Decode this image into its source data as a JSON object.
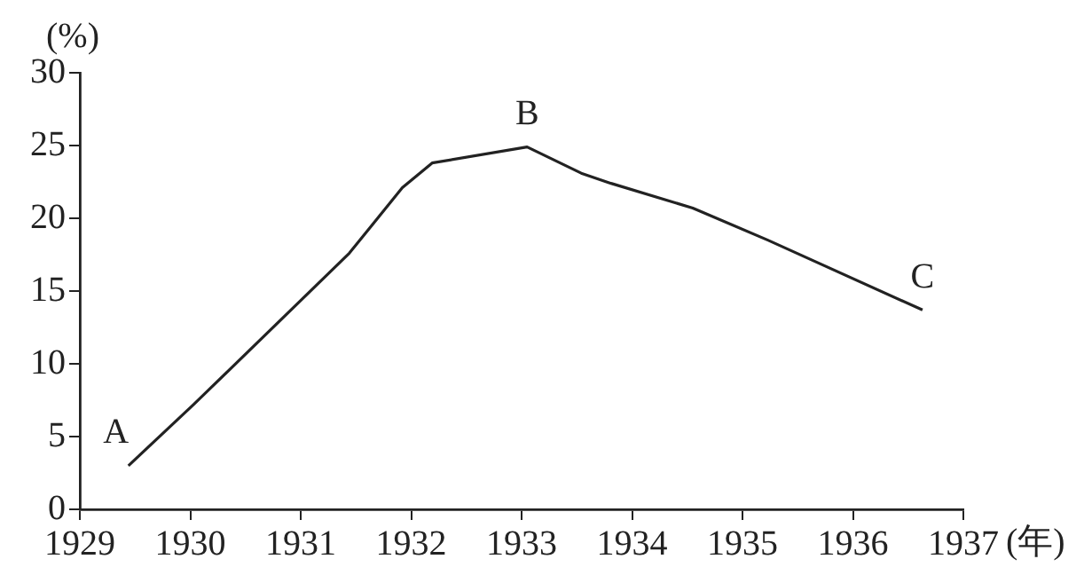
{
  "chart_data": {
    "type": "line",
    "xlabel": "(年)",
    "ylabel": "(%)",
    "series": [
      {
        "color": "#222222",
        "x": [
          1929.44,
          1930.03,
          1931.44,
          1931.92,
          1932.19,
          1933.05,
          1933.54,
          1933.81,
          1934.55,
          1935.23,
          1936.63
        ],
        "values": [
          3.0,
          7.2,
          17.6,
          22.1,
          23.8,
          24.9,
          23.1,
          22.4,
          20.7,
          18.5,
          13.7
        ]
      }
    ],
    "xlim": [
      1929,
      1937
    ],
    "xticks": [
      1929,
      1930,
      1931,
      1932,
      1933,
      1934,
      1935,
      1936,
      1937
    ],
    "ylim": [
      0,
      30
    ],
    "yticks": [
      0,
      5,
      10,
      15,
      20,
      25,
      30
    ],
    "grid": false,
    "legend": false,
    "marker": "none",
    "line_style": "solid",
    "annotations": [
      {
        "text": "A",
        "x": 1929.44,
        "y": 3.0
      },
      {
        "text": "B",
        "x": 1933.05,
        "y": 24.9
      },
      {
        "text": "C",
        "x": 1936.63,
        "y": 13.7
      }
    ]
  }
}
